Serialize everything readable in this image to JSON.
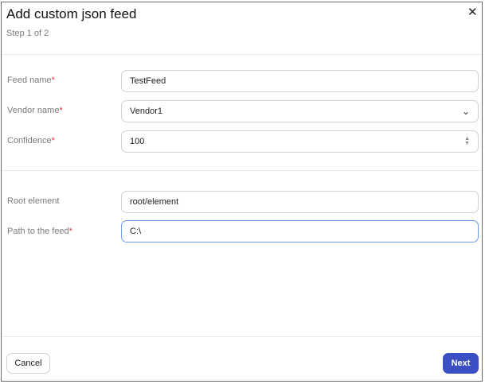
{
  "dialog": {
    "title": "Add custom json feed",
    "step": "Step 1 of 2"
  },
  "fields": [
    {
      "label": "Feed name",
      "required": "*",
      "value": "TestFeed"
    },
    {
      "label": "Vendor name",
      "required": "*",
      "value": "Vendor1",
      "icon": "chevron-down-icon"
    },
    {
      "label": "Confidence",
      "required": "*",
      "value": "100",
      "icon": "spinner-arrows-icon"
    },
    {
      "label": "Root element",
      "value": "root/element"
    },
    {
      "label": "Path to the feed",
      "required": "*",
      "value": "C:\\"
    }
  ],
  "footer": {
    "cancel": "Cancel",
    "next": "Next"
  },
  "colors": {
    "accent": "#3a4fc4",
    "required": "#e53935",
    "focus": "#6f9be8"
  }
}
